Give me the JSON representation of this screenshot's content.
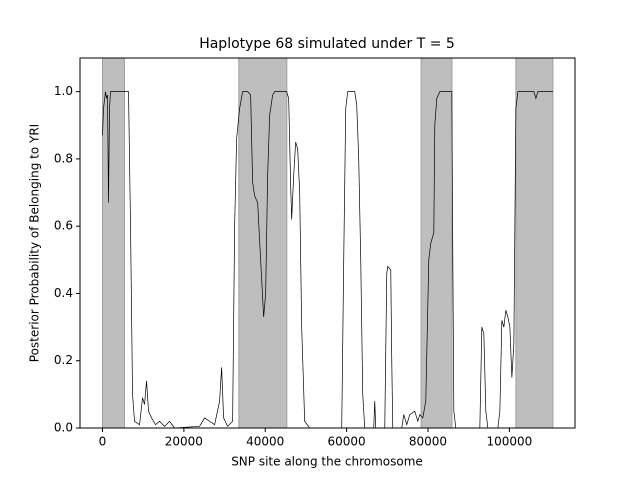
{
  "chart_data": {
    "type": "line",
    "title": "Haplotype 68 simulated under T = 5",
    "x_label": "SNP site along the chromosome",
    "y_label": "Posterior Probability of Belonging to YRI",
    "xlim": [
      -5530,
      116130
    ],
    "ylim": [
      0,
      1.1
    ],
    "xticks": [
      0,
      20000,
      40000,
      60000,
      80000,
      100000
    ],
    "yticks": [
      {
        "value": 0,
        "label": "0.0"
      },
      0.2,
      0.4,
      0.6,
      0.8,
      {
        "value": 1,
        "label": "1.0"
      }
    ],
    "regions": [
      [
        0,
        5400
      ],
      [
        33500,
        45300
      ],
      [
        78300,
        85900
      ],
      [
        101600,
        110700
      ]
    ],
    "region_color": "#bebebe",
    "x": [
      0,
      246,
      738,
      984,
      1230,
      1476,
      1722,
      1968,
      5412,
      6396,
      6888,
      7380,
      7872,
      9102,
      9840,
      10332,
      10824,
      11316,
      12054,
      13038,
      14022,
      15252,
      16482,
      17712,
      23862,
      25092,
      26322,
      27552,
      28782,
      29274,
      29766,
      30750,
      31980,
      32472,
      32964,
      33702,
      34440,
      35670,
      36408,
      36900,
      37392,
      38130,
      38868,
      39606,
      40098,
      40590,
      41082,
      41820,
      42312,
      45264,
      45756,
      46248,
      46494,
      46986,
      47478,
      47970,
      48462,
      48954,
      49692,
      50922,
      58794,
      59286,
      59778,
      60270,
      61992,
      62484,
      62976,
      63468,
      63960,
      64452,
      66666,
      66912,
      67158,
      69372,
      69864,
      70110,
      70848,
      71094,
      71340,
      73554,
      74046,
      74784,
      75522,
      76752,
      77490,
      77982,
      78720,
      79458,
      80196,
      80688,
      81426,
      81672,
      82164,
      82902,
      85854,
      86100,
      86346,
      86838,
      92742,
      93234,
      93726,
      94218,
      94710,
      97170,
      97662,
      98154,
      98646,
      99138,
      99630,
      100122,
      100614,
      101106,
      101598,
      102090,
      106026,
      106518,
      107010,
      110700
    ],
    "series": [
      {
        "name": "posterior",
        "color": "#000000",
        "values": [
          0.87,
          0.95,
          1.0,
          0.98,
          0.99,
          0.67,
          0.95,
          1.0,
          1.0,
          1.0,
          0.6,
          0.1,
          0.02,
          0.01,
          0.09,
          0.07,
          0.14,
          0.05,
          0.03,
          0.01,
          0.02,
          0.005,
          0.02,
          0,
          0.005,
          0.03,
          0.02,
          0.01,
          0.08,
          0.18,
          0.03,
          0.005,
          0.02,
          0.6,
          0.86,
          0.95,
          1.0,
          1.0,
          0.99,
          0.73,
          0.69,
          0.67,
          0.5,
          0.33,
          0.4,
          0.75,
          0.93,
          0.99,
          1.0,
          1.0,
          0.98,
          0.72,
          0.62,
          0.75,
          0.85,
          0.83,
          0.7,
          0.3,
          0.02,
          0,
          0,
          0.5,
          0.95,
          1.0,
          1.0,
          0.96,
          0.8,
          0.5,
          0.1,
          0,
          0,
          0.08,
          0,
          0,
          0.46,
          0.48,
          0.47,
          0.2,
          0,
          0,
          0.04,
          0.01,
          0.04,
          0.05,
          0.02,
          0.04,
          0.03,
          0.08,
          0.5,
          0.55,
          0.58,
          0.9,
          0.98,
          1.0,
          1.0,
          0.5,
          0.05,
          0,
          0,
          0.3,
          0.28,
          0.05,
          0,
          0,
          0.05,
          0.32,
          0.3,
          0.35,
          0.33,
          0.3,
          0.15,
          0.25,
          0.95,
          1.0,
          1.0,
          0.98,
          1.0,
          1.0
        ]
      }
    ]
  }
}
